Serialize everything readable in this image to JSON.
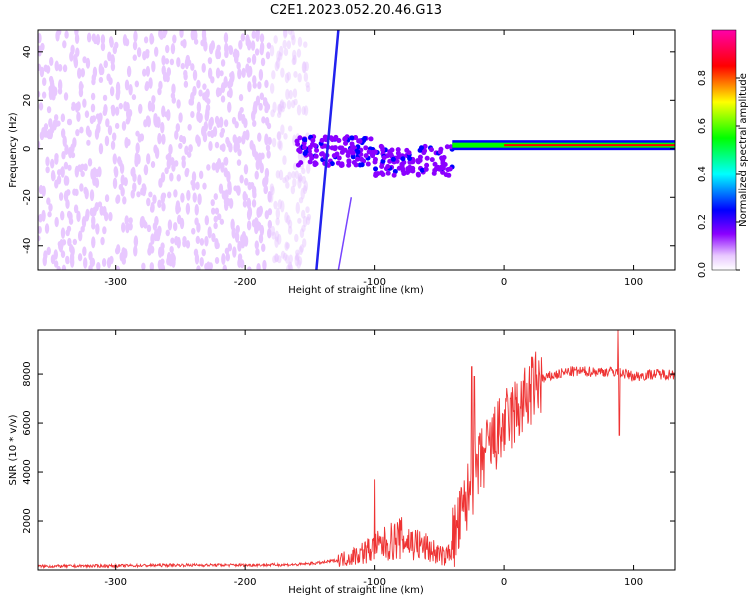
{
  "title": "C2E1.2023.052.20.46.G13",
  "chart_data": [
    {
      "type": "heatmap",
      "xlabel": "Height of straight line (km)",
      "ylabel": "Frequency (Hz)",
      "xlim": [
        -360,
        132
      ],
      "ylim": [
        -50,
        49
      ],
      "x_ticks": [
        -300,
        -200,
        -100,
        0,
        100
      ],
      "y_ticks": [
        -40,
        -20,
        0,
        20,
        40
      ],
      "colorbar": {
        "label": "Normalized spectral amplitude",
        "range": [
          0,
          1
        ],
        "ticks": [
          0.0,
          0.2,
          0.4,
          0.6,
          0.8
        ],
        "colors": [
          "#ffffff",
          "#e8c8ff",
          "#8b00ff",
          "#0000ff",
          "#00ffff",
          "#00ff00",
          "#ffff00",
          "#ff0000",
          "#ff00aa"
        ]
      },
      "features": [
        {
          "name": "noise",
          "x_range": [
            -360,
            -150
          ],
          "freq_range": [
            -50,
            49
          ],
          "amplitude": 0.15
        },
        {
          "name": "tone",
          "x_range": [
            -160,
            -40
          ],
          "freq_center": -5,
          "spread_hz": 6,
          "amplitude": 0.35
        },
        {
          "name": "carrier",
          "x_range": [
            -40,
            132
          ],
          "freq_center": 1.5,
          "amplitude": 0.9
        },
        {
          "name": "diagonal-line-1",
          "x": [
            -145,
            -128
          ],
          "freq": [
            -50,
            49
          ]
        },
        {
          "name": "diagonal-line-2",
          "x": [
            -128,
            -118
          ],
          "freq": [
            -50,
            -20
          ]
        }
      ]
    },
    {
      "type": "line",
      "xlabel": "Height of straight line (km)",
      "ylabel": "SNR (10 * v/v)",
      "xlim": [
        -360,
        132
      ],
      "ylim": [
        0,
        9800
      ],
      "x_ticks": [
        -300,
        -200,
        -100,
        0,
        100
      ],
      "y_ticks": [
        2000,
        4000,
        6000,
        8000
      ],
      "color": "#ee3333",
      "points": [
        [
          -360,
          150
        ],
        [
          -300,
          170
        ],
        [
          -250,
          200
        ],
        [
          -200,
          200
        ],
        [
          -160,
          220
        ],
        [
          -140,
          300
        ],
        [
          -120,
          500
        ],
        [
          -100,
          900
        ],
        [
          -80,
          1300
        ],
        [
          -60,
          900
        ],
        [
          -45,
          500
        ],
        [
          -35,
          1800
        ],
        [
          -25,
          3500
        ],
        [
          -15,
          4700
        ],
        [
          -5,
          5500
        ],
        [
          5,
          6200
        ],
        [
          15,
          6800
        ],
        [
          25,
          7600
        ],
        [
          35,
          7900
        ],
        [
          50,
          8100
        ],
        [
          70,
          8100
        ],
        [
          88,
          8100
        ],
        [
          100,
          7900
        ],
        [
          115,
          8000
        ],
        [
          132,
          8000
        ]
      ],
      "spikes": [
        [
          -100,
          3700
        ],
        [
          -25,
          8300
        ],
        [
          -23,
          7900
        ],
        [
          88,
          9800
        ],
        [
          89,
          5500
        ]
      ]
    }
  ]
}
